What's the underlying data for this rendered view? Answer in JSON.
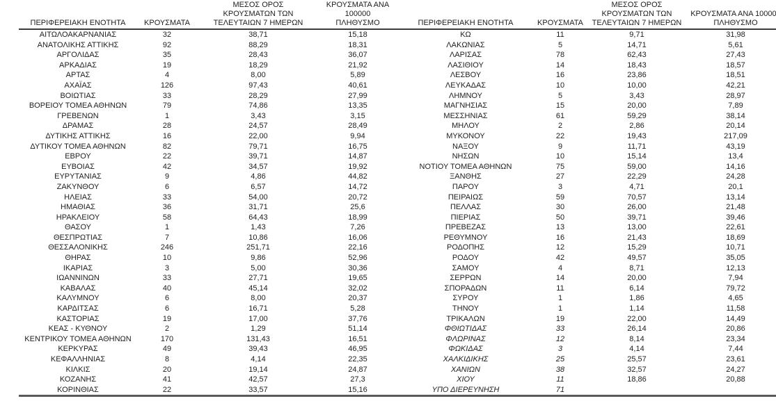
{
  "colors": {
    "text": "#212121",
    "header_rule": "#3a3a3a",
    "bottom_rule": "#595959"
  },
  "table": {
    "headers": {
      "region": "ΠΕΡΙΦΕΡΕΙΑΚΗ ΕΝΟΤΗΤΑ",
      "cases": "ΚΡΟΥΣΜΑΤΑ",
      "avg7_lines": [
        "ΜΕΣΟΣ ΟΡΟΣ",
        "ΚΡΟΥΣΜΑΤΩΝ ΤΩΝ",
        "ΤΕΛΕΥΤΑΙΩΝ 7 ΗΜΕΡΩΝ"
      ],
      "per100k_lines": [
        "ΚΡΟΥΣΜΑΤΑ ΑΝΑ 100000",
        "ΠΛΗΘΥΣΜΟ"
      ]
    },
    "left_rows": [
      {
        "region": "ΑΙΤΩΛΟΑΚΑΡΝΑΝΙΑΣ",
        "cases": "32",
        "avg7": "38,71",
        "per100k": "15,18"
      },
      {
        "region": "ΑΝΑΤΟΛΙΚΗΣ ΑΤΤΙΚΗΣ",
        "cases": "92",
        "avg7": "88,29",
        "per100k": "18,31"
      },
      {
        "region": "ΑΡΓΟΛΙΔΑΣ",
        "cases": "35",
        "avg7": "28,43",
        "per100k": "36,07"
      },
      {
        "region": "ΑΡΚΑΔΙΑΣ",
        "cases": "19",
        "avg7": "18,29",
        "per100k": "21,92"
      },
      {
        "region": "ΑΡΤΑΣ",
        "cases": "4",
        "avg7": "8,00",
        "per100k": "5,89"
      },
      {
        "region": "ΑΧΑΪΑΣ",
        "cases": "126",
        "avg7": "97,43",
        "per100k": "40,61"
      },
      {
        "region": "ΒΟΙΩΤΙΑΣ",
        "cases": "33",
        "avg7": "28,29",
        "per100k": "27,99"
      },
      {
        "region": "ΒΟΡΕΙΟΥ ΤΟΜΕΑ ΑΘΗΝΩΝ",
        "cases": "79",
        "avg7": "74,86",
        "per100k": "13,35"
      },
      {
        "region": "ΓΡΕΒΕΝΩΝ",
        "cases": "1",
        "avg7": "3,43",
        "per100k": "3,15"
      },
      {
        "region": "ΔΡΑΜΑΣ",
        "cases": "28",
        "avg7": "24,57",
        "per100k": "28,49"
      },
      {
        "region": "ΔΥΤΙΚΗΣ ΑΤΤΙΚΗΣ",
        "cases": "16",
        "avg7": "22,00",
        "per100k": "9,94"
      },
      {
        "region": "ΔΥΤΙΚΟΥ ΤΟΜΕΑ ΑΘΗΝΩΝ",
        "cases": "82",
        "avg7": "79,71",
        "per100k": "16,75"
      },
      {
        "region": "ΕΒΡΟΥ",
        "cases": "22",
        "avg7": "39,71",
        "per100k": "14,87"
      },
      {
        "region": "ΕΥΒΟΙΑΣ",
        "cases": "42",
        "avg7": "34,57",
        "per100k": "19,92"
      },
      {
        "region": "ΕΥΡΥΤΑΝΙΑΣ",
        "cases": "9",
        "avg7": "4,86",
        "per100k": "44,82"
      },
      {
        "region": "ΖΑΚΥΝΘΟΥ",
        "cases": "6",
        "avg7": "6,57",
        "per100k": "14,72"
      },
      {
        "region": "ΗΛΕΙΑΣ",
        "cases": "33",
        "avg7": "54,00",
        "per100k": "20,72"
      },
      {
        "region": "ΗΜΑΘΙΑΣ",
        "cases": "36",
        "avg7": "31,71",
        "per100k": "25,6"
      },
      {
        "region": "ΗΡΑΚΛΕΙΟΥ",
        "cases": "58",
        "avg7": "64,43",
        "per100k": "18,99"
      },
      {
        "region": "ΘΑΣΟΥ",
        "cases": "1",
        "avg7": "1,43",
        "per100k": "7,26"
      },
      {
        "region": "ΘΕΣΠΡΩΤΙΑΣ",
        "cases": "7",
        "avg7": "10,86",
        "per100k": "16,06"
      },
      {
        "region": "ΘΕΣΣΑΛΟΝΙΚΗΣ",
        "cases": "246",
        "avg7": "251,71",
        "per100k": "22,16"
      },
      {
        "region": "ΘΗΡΑΣ",
        "cases": "10",
        "avg7": "9,86",
        "per100k": "52,96"
      },
      {
        "region": "ΙΚΑΡΙΑΣ",
        "cases": "3",
        "avg7": "5,00",
        "per100k": "30,36"
      },
      {
        "region": "ΙΩΑΝΝΙΝΩΝ",
        "cases": "33",
        "avg7": "27,71",
        "per100k": "19,65"
      },
      {
        "region": "ΚΑΒΑΛΑΣ",
        "cases": "40",
        "avg7": "45,14",
        "per100k": "32,02"
      },
      {
        "region": "ΚΑΛΥΜΝΟΥ",
        "cases": "6",
        "avg7": "8,00",
        "per100k": "20,37"
      },
      {
        "region": "ΚΑΡΔΙΤΣΑΣ",
        "cases": "6",
        "avg7": "16,71",
        "per100k": "5,28"
      },
      {
        "region": "ΚΑΣΤΟΡΙΑΣ",
        "cases": "19",
        "avg7": "17,00",
        "per100k": "37,76"
      },
      {
        "region": "ΚΕΑΣ - ΚΥΘΝΟΥ",
        "cases": "2",
        "avg7": "1,29",
        "per100k": "51,14"
      },
      {
        "region": "ΚΕΝΤΡΙΚΟΥ ΤΟΜΕΑ ΑΘΗΝΩΝ",
        "cases": "170",
        "avg7": "131,43",
        "per100k": "16,51"
      },
      {
        "region": "ΚΕΡΚΥΡΑΣ",
        "cases": "49",
        "avg7": "39,43",
        "per100k": "46,95"
      },
      {
        "region": "ΚΕΦΑΛΛΗΝΙΑΣ",
        "cases": "8",
        "avg7": "4,14",
        "per100k": "22,35"
      },
      {
        "region": "ΚΙΛΚΙΣ",
        "cases": "20",
        "avg7": "19,14",
        "per100k": "24,87"
      },
      {
        "region": "ΚΟΖΑΝΗΣ",
        "cases": "41",
        "avg7": "42,57",
        "per100k": "27,3"
      },
      {
        "region": "ΚΟΡΙΝΘΙΑΣ",
        "cases": "22",
        "avg7": "33,57",
        "per100k": "15,16"
      }
    ],
    "right_rows": [
      {
        "region": "ΚΩ",
        "cases": "11",
        "avg7": "9,71",
        "per100k": "31,98"
      },
      {
        "region": "ΛΑΚΩΝΙΑΣ",
        "cases": "5",
        "avg7": "14,71",
        "per100k": "5,61"
      },
      {
        "region": "ΛΑΡΙΣΑΣ",
        "cases": "78",
        "avg7": "62,43",
        "per100k": "27,43"
      },
      {
        "region": "ΛΑΣΙΘΙΟΥ",
        "cases": "14",
        "avg7": "18,43",
        "per100k": "18,57"
      },
      {
        "region": "ΛΕΣΒΟΥ",
        "cases": "16",
        "avg7": "23,86",
        "per100k": "18,51"
      },
      {
        "region": "ΛΕΥΚΑΔΑΣ",
        "cases": "10",
        "avg7": "10,00",
        "per100k": "42,21"
      },
      {
        "region": "ΛΗΜΝΟΥ",
        "cases": "5",
        "avg7": "3,43",
        "per100k": "28,97"
      },
      {
        "region": "ΜΑΓΝΗΣΙΑΣ",
        "cases": "15",
        "avg7": "20,00",
        "per100k": "7,89"
      },
      {
        "region": "ΜΕΣΣΗΝΙΑΣ",
        "cases": "61",
        "avg7": "59,29",
        "per100k": "38,14"
      },
      {
        "region": "ΜΗΛΟΥ",
        "cases": "2",
        "avg7": "2,86",
        "per100k": "20,14"
      },
      {
        "region": "ΜΥΚΟΝΟΥ",
        "cases": "22",
        "avg7": "19,43",
        "per100k": "217,09"
      },
      {
        "region": "ΝΑΞΟΥ",
        "cases": "9",
        "avg7": "11,71",
        "per100k": "43,19"
      },
      {
        "region": "ΝΗΣΩΝ",
        "cases": "10",
        "avg7": "15,14",
        "per100k": "13,4"
      },
      {
        "region": "ΝΟΤΙΟΥ ΤΟΜΕΑ ΑΘΗΝΩΝ",
        "cases": "75",
        "avg7": "59,00",
        "per100k": "14,16"
      },
      {
        "region": "ΞΑΝΘΗΣ",
        "cases": "27",
        "avg7": "22,29",
        "per100k": "24,28"
      },
      {
        "region": "ΠΑΡΟΥ",
        "cases": "3",
        "avg7": "4,71",
        "per100k": "20,1"
      },
      {
        "region": "ΠΕΙΡΑΙΩΣ",
        "cases": "59",
        "avg7": "70,57",
        "per100k": "13,14"
      },
      {
        "region": "ΠΕΛΛΑΣ",
        "cases": "30",
        "avg7": "26,00",
        "per100k": "21,48"
      },
      {
        "region": "ΠΙΕΡΙΑΣ",
        "cases": "50",
        "avg7": "39,71",
        "per100k": "39,46"
      },
      {
        "region": "ΠΡΕΒΕΖΑΣ",
        "cases": "13",
        "avg7": "13,00",
        "per100k": "22,61"
      },
      {
        "region": "ΡΕΘΥΜΝΟΥ",
        "cases": "16",
        "avg7": "21,43",
        "per100k": "18,69"
      },
      {
        "region": "ΡΟΔΟΠΗΣ",
        "cases": "12",
        "avg7": "15,29",
        "per100k": "10,71"
      },
      {
        "region": "ΡΟΔΟΥ",
        "cases": "42",
        "avg7": "49,57",
        "per100k": "35,05"
      },
      {
        "region": "ΣΑΜΟΥ",
        "cases": "4",
        "avg7": "8,71",
        "per100k": "12,13"
      },
      {
        "region": "ΣΕΡΡΩΝ",
        "cases": "14",
        "avg7": "20,00",
        "per100k": "7,94"
      },
      {
        "region": "ΣΠΟΡΑΔΩΝ",
        "cases": "11",
        "avg7": "6,14",
        "per100k": "79,72"
      },
      {
        "region": "ΣΥΡΟΥ",
        "cases": "1",
        "avg7": "1,86",
        "per100k": "4,65"
      },
      {
        "region": "ΤΗΝΟΥ",
        "cases": "1",
        "avg7": "1,14",
        "per100k": "11,58"
      },
      {
        "region": "ΤΡΙΚΑΛΩΝ",
        "cases": "19",
        "avg7": "22,00",
        "per100k": "14,49"
      },
      {
        "region": "ΦΘΙΩΤΙΔΑΣ",
        "cases": "33",
        "avg7": "26,14",
        "per100k": "20,86",
        "italic": true
      },
      {
        "region": "ΦΛΩΡΙΝΑΣ",
        "cases": "12",
        "avg7": "8,14",
        "per100k": "23,34",
        "italic": true
      },
      {
        "region": "ΦΩΚΙΔΑΣ",
        "cases": "3",
        "avg7": "4,14",
        "per100k": "7,44",
        "italic": true
      },
      {
        "region": "ΧΑΛΚΙΔΙΚΗΣ",
        "cases": "25",
        "avg7": "25,57",
        "per100k": "23,61",
        "italic": true
      },
      {
        "region": "ΧΑΝΙΩΝ",
        "cases": "38",
        "avg7": "32,57",
        "per100k": "24,27",
        "italic": true
      },
      {
        "region": "ΧΙΟΥ",
        "cases": "11",
        "avg7": "18,86",
        "per100k": "20,88",
        "italic": true
      },
      {
        "region": "ΥΠΟ ΔΙΕΡΕΥΝΗΣΗ",
        "cases": "71",
        "avg7": "",
        "per100k": "",
        "italic": true
      }
    ]
  }
}
